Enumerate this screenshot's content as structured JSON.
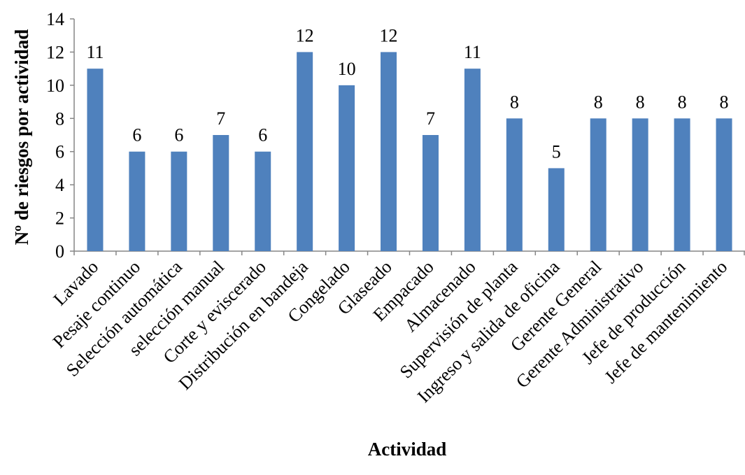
{
  "chart_data": {
    "type": "bar",
    "title": "",
    "xlabel": "Actividad",
    "ylabel": "Nº de riesgos por actividad",
    "ylim": [
      0,
      14
    ],
    "yticks": [
      0,
      2,
      4,
      6,
      8,
      10,
      12,
      14
    ],
    "grid": false,
    "legend": "none",
    "bar_color": "#4F81BD",
    "categories": [
      "Lavado",
      "Pesaje continuo",
      "Selección automática",
      "selección manual",
      "Corte y eviscerado",
      "Distribución en bandeja",
      "Congelado",
      "Glaseado",
      "Empacado",
      "Almacenado",
      "Supervisión de planta",
      "Ingreso y salida de oficina",
      "Gerente General",
      "Gerente Administrativo",
      "Jefe de producción",
      "Jefe de mantenimiento"
    ],
    "values": [
      11,
      6,
      6,
      7,
      6,
      12,
      10,
      12,
      7,
      11,
      8,
      5,
      8,
      8,
      8,
      8
    ],
    "data_labels": true
  }
}
